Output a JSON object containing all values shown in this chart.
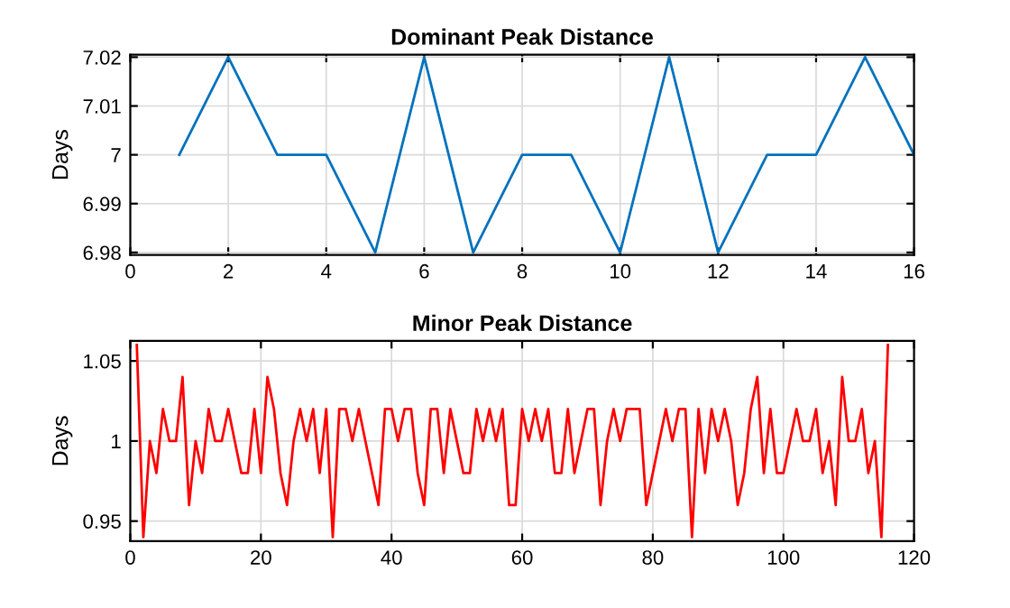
{
  "chart_data": [
    {
      "type": "line",
      "title": "Dominant Peak Distance",
      "ylabel": "Days",
      "x": [
        1,
        2,
        3,
        4,
        5,
        6,
        7,
        8,
        9,
        10,
        11,
        12,
        13,
        14,
        15,
        16
      ],
      "series": [
        {
          "color": "#0072bd",
          "values": [
            7,
            7.02,
            7,
            7,
            6.98,
            7.02,
            6.98,
            7,
            7,
            6.98,
            7.02,
            6.98,
            7,
            7,
            7.02,
            7
          ]
        }
      ],
      "xlim": [
        0,
        16
      ],
      "xticks": [
        0,
        2,
        4,
        6,
        8,
        10,
        12,
        14,
        16
      ],
      "ylim": [
        6.9795,
        7.0205
      ],
      "yticks": [
        6.98,
        6.99,
        7,
        7.01,
        7.02
      ],
      "grid": true
    },
    {
      "type": "line",
      "title": "Minor Peak Distance",
      "ylabel": "Days",
      "x": [
        1,
        2,
        3,
        4,
        5,
        6,
        7,
        8,
        9,
        10,
        11,
        12,
        13,
        14,
        15,
        16,
        17,
        18,
        19,
        20,
        21,
        22,
        23,
        24,
        25,
        26,
        27,
        28,
        29,
        30,
        31,
        32,
        33,
        34,
        35,
        36,
        37,
        38,
        39,
        40,
        41,
        42,
        43,
        44,
        45,
        46,
        47,
        48,
        49,
        50,
        51,
        52,
        53,
        54,
        55,
        56,
        57,
        58,
        59,
        60,
        61,
        62,
        63,
        64,
        65,
        66,
        67,
        68,
        69,
        70,
        71,
        72,
        73,
        74,
        75,
        76,
        77,
        78,
        79,
        80,
        81,
        82,
        83,
        84,
        85,
        86,
        87,
        88,
        89,
        90,
        91,
        92,
        93,
        94,
        95,
        96,
        97,
        98,
        99,
        100,
        101,
        102,
        103,
        104,
        105,
        106,
        107,
        108,
        109,
        110,
        111,
        112,
        113,
        114,
        115,
        116
      ],
      "series": [
        {
          "color": "#ff0000",
          "values": [
            1.06,
            0.94,
            1.0,
            0.98,
            1.02,
            1.0,
            1.0,
            1.04,
            0.96,
            1.0,
            0.98,
            1.02,
            1.0,
            1.0,
            1.02,
            1.0,
            0.98,
            0.98,
            1.02,
            0.98,
            1.04,
            1.02,
            0.98,
            0.96,
            1.0,
            1.02,
            1.0,
            1.02,
            0.98,
            1.02,
            0.94,
            1.02,
            1.02,
            1.0,
            1.02,
            1.0,
            0.98,
            0.96,
            1.02,
            1.02,
            1.0,
            1.02,
            1.02,
            0.98,
            0.96,
            1.02,
            1.02,
            0.98,
            1.02,
            1.0,
            0.98,
            0.98,
            1.02,
            1.0,
            1.02,
            1.0,
            1.02,
            0.96,
            0.96,
            1.02,
            1.0,
            1.02,
            1.0,
            1.02,
            0.98,
            0.98,
            1.02,
            0.98,
            1.0,
            1.02,
            1.02,
            0.96,
            1.0,
            1.02,
            1.0,
            1.02,
            1.02,
            1.02,
            0.96,
            0.98,
            1.0,
            1.02,
            1.0,
            1.02,
            1.02,
            0.94,
            1.02,
            0.98,
            1.02,
            1.0,
            1.02,
            1.0,
            0.96,
            0.98,
            1.02,
            1.04,
            0.98,
            1.02,
            0.98,
            0.98,
            1.0,
            1.02,
            1.0,
            1.0,
            1.02,
            0.98,
            1.0,
            0.96,
            1.04,
            1.0,
            1.0,
            1.02,
            0.98,
            1.0,
            0.94,
            1.06
          ]
        }
      ],
      "xlim": [
        0,
        120
      ],
      "xticks": [
        0,
        20,
        40,
        60,
        80,
        100,
        120
      ],
      "ylim": [
        0.9375,
        1.0625
      ],
      "yticks": [
        0.95,
        1,
        1.05
      ],
      "grid": true
    }
  ]
}
